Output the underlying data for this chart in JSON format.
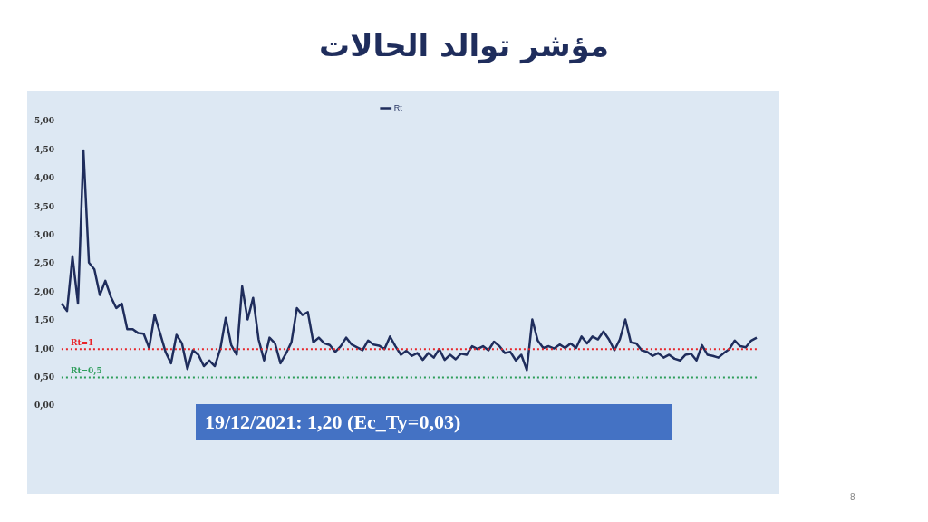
{
  "chart_data": {
    "type": "line",
    "title": "مؤشر توالد الحالات",
    "categories": [
      null,
      null,
      null,
      null,
      null,
      null,
      null,
      null,
      null,
      null,
      null,
      null,
      null,
      null,
      null,
      null,
      null,
      null,
      null,
      null,
      null,
      null,
      null,
      null,
      null,
      null,
      null,
      null,
      null,
      null,
      null,
      null,
      null,
      null,
      null,
      null,
      null,
      null,
      null,
      null,
      null,
      null,
      null,
      null,
      null,
      null,
      null,
      null,
      null,
      null,
      null,
      null,
      null,
      null,
      null,
      null,
      null,
      null,
      null,
      null,
      null,
      null,
      null,
      null,
      null,
      null,
      null,
      null,
      null,
      null,
      null,
      null,
      null,
      null,
      null,
      null,
      null,
      null,
      null,
      null,
      null,
      null,
      null,
      null,
      null,
      null,
      null,
      null,
      null,
      null,
      null,
      null,
      null,
      null,
      null,
      null,
      null,
      null,
      null,
      null,
      null,
      null,
      null,
      null,
      null,
      null,
      null,
      null,
      null,
      null,
      null,
      null,
      null,
      null,
      null,
      null,
      null,
      null,
      null,
      null,
      null,
      null,
      null,
      null,
      null,
      null,
      null,
      null
    ],
    "series": [
      {
        "name": "Rt",
        "color": "#1f2d5c",
        "values": [
          1.8,
          1.67,
          2.63,
          1.8,
          4.49,
          2.52,
          2.4,
          1.95,
          2.2,
          1.92,
          1.72,
          1.8,
          1.35,
          1.35,
          1.28,
          1.27,
          1.02,
          1.6,
          1.28,
          0.95,
          0.75,
          1.25,
          1.1,
          0.65,
          0.98,
          0.9,
          0.7,
          0.8,
          0.7,
          1.0,
          1.55,
          1.07,
          0.9,
          2.1,
          1.52,
          1.9,
          1.17,
          0.8,
          1.2,
          1.1,
          0.75,
          0.92,
          1.12,
          1.72,
          1.6,
          1.65,
          1.12,
          1.2,
          1.1,
          1.07,
          0.95,
          1.05,
          1.2,
          1.08,
          1.03,
          0.98,
          1.15,
          1.08,
          1.06,
          1.0,
          1.22,
          1.05,
          0.9,
          0.97,
          0.88,
          0.93,
          0.81,
          0.93,
          0.85,
          1.0,
          0.81,
          0.9,
          0.82,
          0.92,
          0.9,
          1.05,
          1.0,
          1.05,
          0.98,
          1.13,
          1.05,
          0.93,
          0.95,
          0.8,
          0.9,
          0.63,
          1.52,
          1.15,
          1.02,
          1.05,
          1.01,
          1.08,
          1.02,
          1.1,
          1.02,
          1.22,
          1.1,
          1.22,
          1.17,
          1.31,
          1.17,
          0.98,
          1.17,
          1.52,
          1.12,
          1.1,
          0.98,
          0.95,
          0.88,
          0.93,
          0.85,
          0.9,
          0.83,
          0.8,
          0.9,
          0.92,
          0.8,
          1.07,
          0.9,
          0.88,
          0.85,
          0.93,
          1.0,
          1.15,
          1.05,
          1.03,
          1.15,
          1.2
        ]
      }
    ],
    "ylim": [
      0,
      5
    ],
    "yticks": [
      {
        "value": 0,
        "label": "0,00"
      },
      {
        "value": 0.5,
        "label": "0,50"
      },
      {
        "value": 1,
        "label": "1,00"
      },
      {
        "value": 1.5,
        "label": "1,50"
      },
      {
        "value": 2,
        "label": "2,00"
      },
      {
        "value": 2.5,
        "label": "2,50"
      },
      {
        "value": 3,
        "label": "3,00"
      },
      {
        "value": 3.5,
        "label": "3,50"
      },
      {
        "value": 4,
        "label": "4,00"
      },
      {
        "value": 4.5,
        "label": "4,50"
      },
      {
        "value": 5,
        "label": "5,00"
      }
    ],
    "ref_lines": [
      {
        "axis": "y",
        "value": 1,
        "label": "Rt=1",
        "color": "#e8252a",
        "line_style": "dotted"
      },
      {
        "axis": "y",
        "value": 0.5,
        "label": "Rt=0,5",
        "color": "#2e9e5b",
        "line_style": "dotted"
      }
    ],
    "annotations": [
      "19/12/2021: 1,20 (Ec_Ty=0,03)",
      "8"
    ],
    "legend": "top",
    "grid": false,
    "tick_labels": "y",
    "marker": "none",
    "line_style": "solid"
  }
}
